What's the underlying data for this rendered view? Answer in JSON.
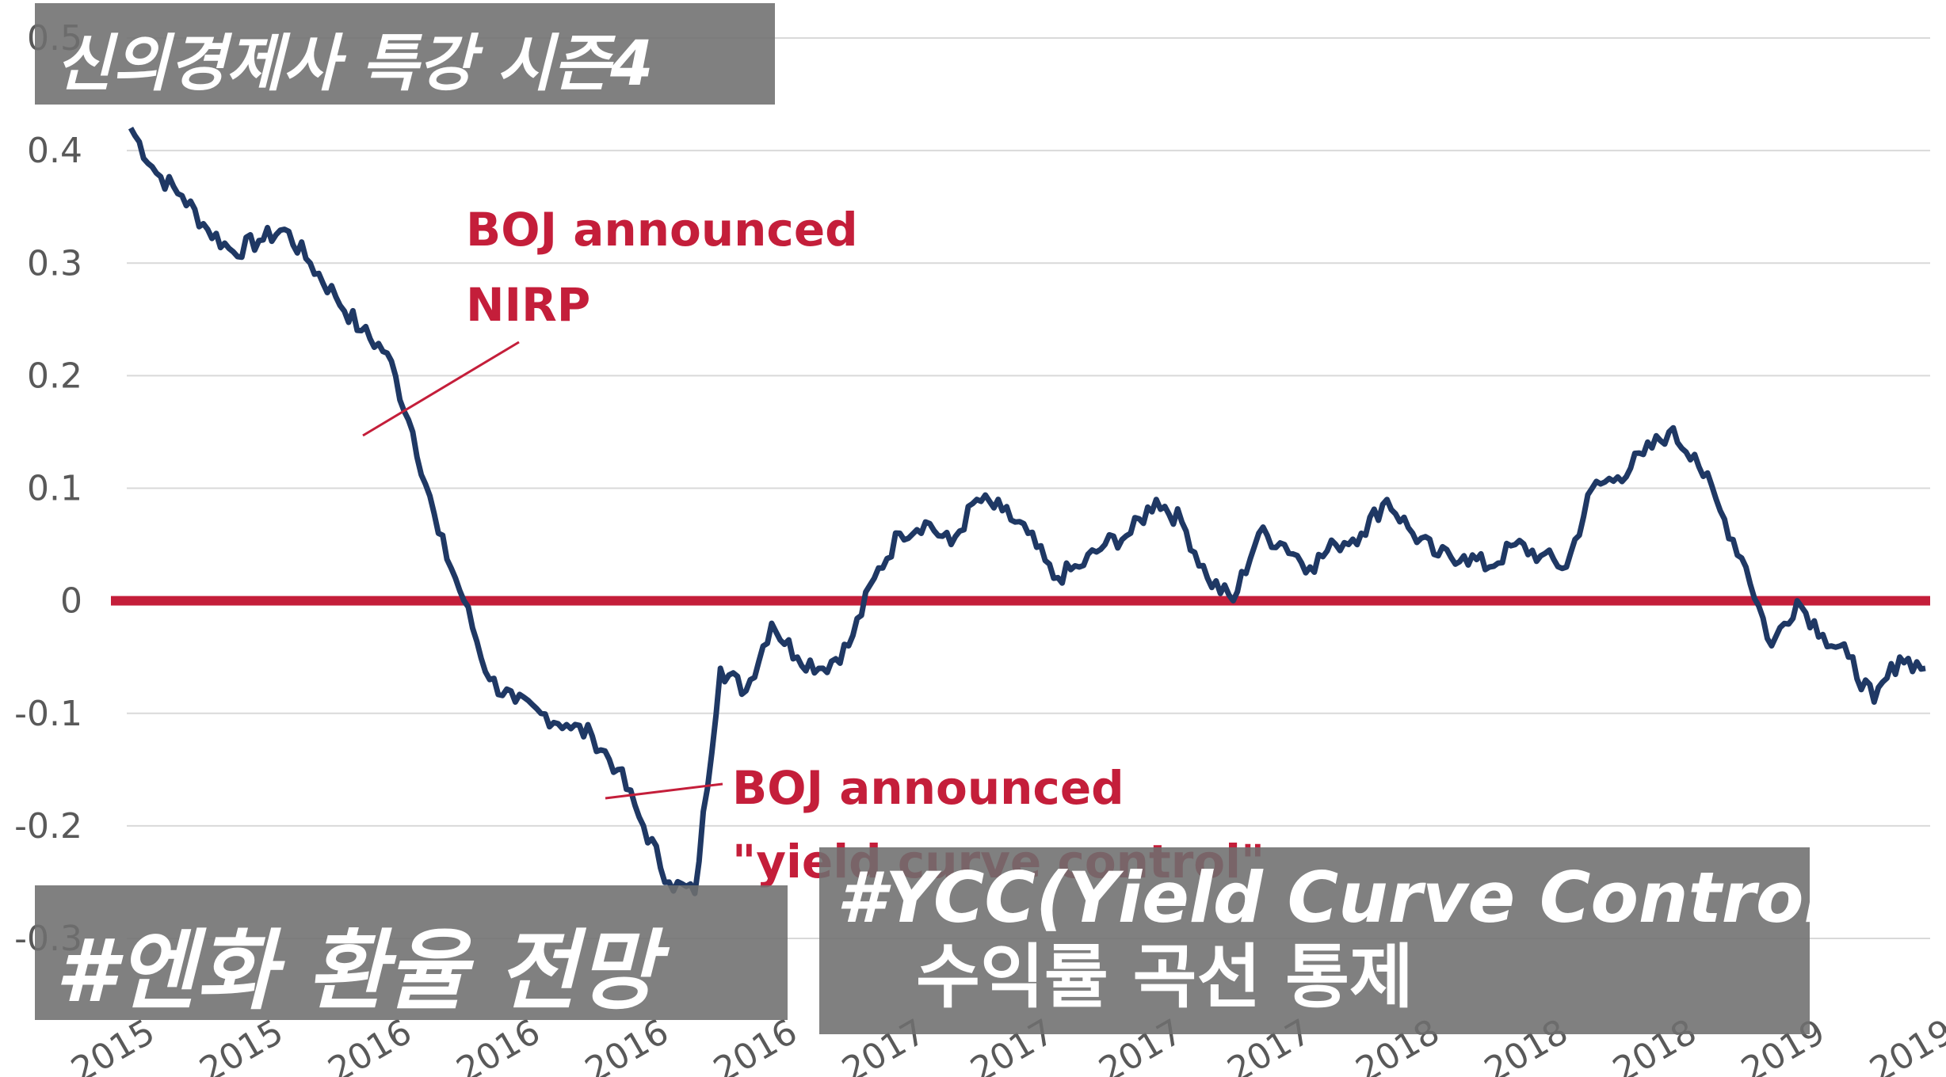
{
  "chart_data": {
    "type": "line",
    "title": "",
    "xlabel": "",
    "ylabel": "",
    "ylim": [
      -0.3,
      0.5
    ],
    "yticks": [
      "-0.3",
      "-0.2",
      "-0.1",
      "0",
      "0.1",
      "0.2",
      "0.3",
      "0.4",
      "0.5"
    ],
    "xticks": [
      "2015",
      "2015",
      "2016",
      "2016",
      "2016",
      "2016",
      "2017",
      "2017",
      "2017",
      "2017",
      "2018",
      "2018",
      "2018",
      "2019",
      "2019"
    ],
    "grid": true,
    "zero_line_color": "#c41e3a",
    "series_color": "#1f3864",
    "series": [
      {
        "values": [
          0.42,
          0.38,
          0.36,
          0.33,
          0.31,
          0.32,
          0.33,
          0.3,
          0.27,
          0.24,
          0.22,
          0.15,
          0.06,
          0.0,
          -0.07,
          -0.09,
          -0.1,
          -0.11,
          -0.12,
          -0.15,
          -0.2,
          -0.25,
          -0.26,
          -0.06,
          -0.08,
          -0.02,
          -0.05,
          -0.06,
          -0.04,
          0.02,
          0.06,
          0.07,
          0.05,
          0.09,
          0.08,
          0.06,
          0.02,
          0.03,
          0.05,
          0.06,
          0.09,
          0.07,
          0.02,
          0.0,
          0.06,
          0.05,
          0.03,
          0.05,
          0.06,
          0.09,
          0.06,
          0.04,
          0.04,
          0.03,
          0.05,
          0.04,
          0.03,
          0.1,
          0.11,
          0.13,
          0.15,
          0.13,
          0.08,
          0.03,
          -0.04,
          0.0,
          -0.03,
          -0.05,
          -0.09,
          -0.05,
          -0.06
        ]
      }
    ],
    "annotations": [
      {
        "lines": [
          "BOJ announced",
          "NIRP"
        ]
      },
      {
        "lines": [
          "BOJ announced",
          "\"yield curve control\""
        ]
      }
    ]
  },
  "overlays": {
    "title": "신의경제사 특강 시즌4",
    "tag": "#엔화 환율 전망",
    "ycc_line1": "#YCC(Yield Curve Control)",
    "ycc_line2": "수익률 곡선 통제"
  }
}
